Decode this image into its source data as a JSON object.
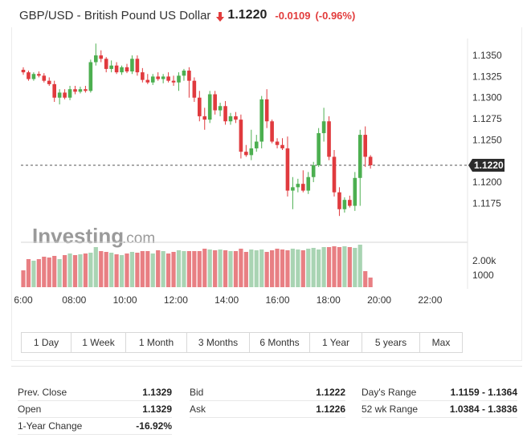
{
  "header": {
    "title": "GBP/USD - British Pound US Dollar",
    "price": "1.1220",
    "change": "-0.0109",
    "change_pct": "(-0.96%)",
    "direction_icon": "arrow-down-icon",
    "down_color": "#e23c3c"
  },
  "colors": {
    "up": "#4caf50",
    "down": "#e03a3e",
    "volume_up": "#a9d4b3",
    "volume_down": "#e87f83",
    "price_tag_bg": "#2c2c2c"
  },
  "watermark": {
    "brand": "Investing",
    "suffix": ".com"
  },
  "chart_data": {
    "type": "candlestick",
    "interval_minutes": 15,
    "x_ticks": [
      "6:00",
      "08:00",
      "10:00",
      "12:00",
      "14:00",
      "16:00",
      "18:00",
      "20:00",
      "22:00"
    ],
    "y_ticks": [
      "1.1350",
      "1.1325",
      "1.1300",
      "1.1275",
      "1.1250",
      "1.1200",
      "1.1175"
    ],
    "y_range": [
      1.1145,
      1.137
    ],
    "current_price": 1.122,
    "current_price_label": "1.1220",
    "volume_ticks": [
      "2.00k",
      "1000"
    ],
    "volume_max": 2400,
    "candles": [
      [
        1.1333,
        1.1336,
        1.1327,
        1.133
      ],
      [
        1.133,
        1.1332,
        1.132,
        1.1322
      ],
      [
        1.1322,
        1.133,
        1.132,
        1.1328
      ],
      [
        1.1328,
        1.1331,
        1.1324,
        1.1326
      ],
      [
        1.1326,
        1.1329,
        1.1318,
        1.132
      ],
      [
        1.132,
        1.1324,
        1.1314,
        1.1316
      ],
      [
        1.1316,
        1.132,
        1.1295,
        1.13
      ],
      [
        1.13,
        1.131,
        1.1292,
        1.1306
      ],
      [
        1.1306,
        1.131,
        1.1298,
        1.13
      ],
      [
        1.13,
        1.1314,
        1.1297,
        1.131
      ],
      [
        1.131,
        1.1314,
        1.1304,
        1.1307
      ],
      [
        1.1307,
        1.1313,
        1.1305,
        1.131
      ],
      [
        1.131,
        1.1314,
        1.1306,
        1.1308
      ],
      [
        1.1308,
        1.1345,
        1.1306,
        1.1342
      ],
      [
        1.1342,
        1.1364,
        1.1338,
        1.135
      ],
      [
        1.135,
        1.1356,
        1.1342,
        1.1346
      ],
      [
        1.1346,
        1.1348,
        1.133,
        1.1334
      ],
      [
        1.1334,
        1.1344,
        1.133,
        1.1338
      ],
      [
        1.1338,
        1.1342,
        1.1328,
        1.133
      ],
      [
        1.133,
        1.1338,
        1.1327,
        1.1336
      ],
      [
        1.1336,
        1.134,
        1.1329,
        1.1331
      ],
      [
        1.1331,
        1.135,
        1.1328,
        1.1346
      ],
      [
        1.1346,
        1.135,
        1.1326,
        1.133
      ],
      [
        1.133,
        1.1335,
        1.1318,
        1.1321
      ],
      [
        1.1321,
        1.1328,
        1.1316,
        1.1318
      ],
      [
        1.1318,
        1.1328,
        1.1315,
        1.1325
      ],
      [
        1.1325,
        1.133,
        1.132,
        1.1322
      ],
      [
        1.1322,
        1.1328,
        1.1317,
        1.1325
      ],
      [
        1.1325,
        1.133,
        1.1318,
        1.132
      ],
      [
        1.132,
        1.1326,
        1.1314,
        1.1318
      ],
      [
        1.1318,
        1.133,
        1.1308,
        1.1326
      ],
      [
        1.1326,
        1.1334,
        1.132,
        1.1332
      ],
      [
        1.1332,
        1.1336,
        1.13,
        1.132
      ],
      [
        1.132,
        1.1324,
        1.1295,
        1.13
      ],
      [
        1.13,
        1.1308,
        1.1272,
        1.1278
      ],
      [
        1.1278,
        1.1288,
        1.1262,
        1.1274
      ],
      [
        1.1274,
        1.1308,
        1.127,
        1.1304
      ],
      [
        1.1304,
        1.1308,
        1.128,
        1.1285
      ],
      [
        1.1285,
        1.1294,
        1.1278,
        1.129
      ],
      [
        1.129,
        1.1296,
        1.1268,
        1.1272
      ],
      [
        1.1272,
        1.1282,
        1.1268,
        1.1278
      ],
      [
        1.1278,
        1.1283,
        1.127,
        1.1274
      ],
      [
        1.1274,
        1.128,
        1.1228,
        1.1236
      ],
      [
        1.1236,
        1.1244,
        1.123,
        1.1232
      ],
      [
        1.1232,
        1.1262,
        1.1226,
        1.124
      ],
      [
        1.124,
        1.1256,
        1.1236,
        1.1248
      ],
      [
        1.1248,
        1.1302,
        1.124,
        1.1298
      ],
      [
        1.1298,
        1.131,
        1.1264,
        1.1272
      ],
      [
        1.1272,
        1.1274,
        1.1246,
        1.1248
      ],
      [
        1.1248,
        1.1252,
        1.124,
        1.1244
      ],
      [
        1.1244,
        1.1252,
        1.1238,
        1.124
      ],
      [
        1.124,
        1.1254,
        1.1183,
        1.119
      ],
      [
        1.119,
        1.1206,
        1.1168,
        1.1194
      ],
      [
        1.1194,
        1.1204,
        1.1188,
        1.1198
      ],
      [
        1.1198,
        1.1214,
        1.1188,
        1.119
      ],
      [
        1.119,
        1.1212,
        1.1186,
        1.1206
      ],
      [
        1.1206,
        1.1224,
        1.12,
        1.122
      ],
      [
        1.122,
        1.1264,
        1.1218,
        1.1258
      ],
      [
        1.1258,
        1.1288,
        1.1248,
        1.1272
      ],
      [
        1.1272,
        1.1278,
        1.1226,
        1.123
      ],
      [
        1.123,
        1.1238,
        1.1183,
        1.1188
      ],
      [
        1.1188,
        1.1194,
        1.116,
        1.1168
      ],
      [
        1.1168,
        1.1182,
        1.1164,
        1.1179
      ],
      [
        1.1179,
        1.1184,
        1.117,
        1.1172
      ],
      [
        1.1172,
        1.1212,
        1.1166,
        1.1205
      ],
      [
        1.1205,
        1.1262,
        1.1172,
        1.1256
      ],
      [
        1.1256,
        1.1266,
        1.1218,
        1.123
      ],
      [
        1.123,
        1.1232,
        1.1216,
        1.122
      ]
    ],
    "volumes": [
      1050,
      1750,
      1650,
      1750,
      1900,
      1850,
      1950,
      1750,
      2000,
      2100,
      2000,
      2050,
      2100,
      2150,
      2500,
      2250,
      2200,
      2150,
      2050,
      2000,
      2100,
      2200,
      2150,
      2250,
      2250,
      2100,
      2300,
      2250,
      2100,
      2200,
      2300,
      2250,
      2250,
      2250,
      2250,
      2400,
      2350,
      2300,
      2350,
      2300,
      2250,
      2250,
      2400,
      2200,
      2350,
      2300,
      2350,
      2200,
      2300,
      2400,
      2350,
      2300,
      2400,
      2350,
      2300,
      2400,
      2450,
      2350,
      2500,
      2500,
      2550,
      2500,
      2550,
      2500,
      2450,
      2650,
      1000,
      600
    ]
  },
  "tabs": [
    "1 Day",
    "1 Week",
    "1 Month",
    "3 Months",
    "6 Months",
    "1 Year",
    "5 years",
    "Max"
  ],
  "stats": {
    "col1": [
      {
        "label": "Prev. Close",
        "value": "1.1329"
      },
      {
        "label": "Open",
        "value": "1.1329"
      },
      {
        "label": "1-Year Change",
        "value": "-16.92%"
      }
    ],
    "col2": [
      {
        "label": "Bid",
        "value": "1.1222"
      },
      {
        "label": "Ask",
        "value": "1.1226"
      }
    ],
    "col3": [
      {
        "label": "Day's Range",
        "value": "1.1159 - 1.1364"
      },
      {
        "label": "52 wk Range",
        "value": "1.0384 - 1.3836"
      }
    ]
  }
}
